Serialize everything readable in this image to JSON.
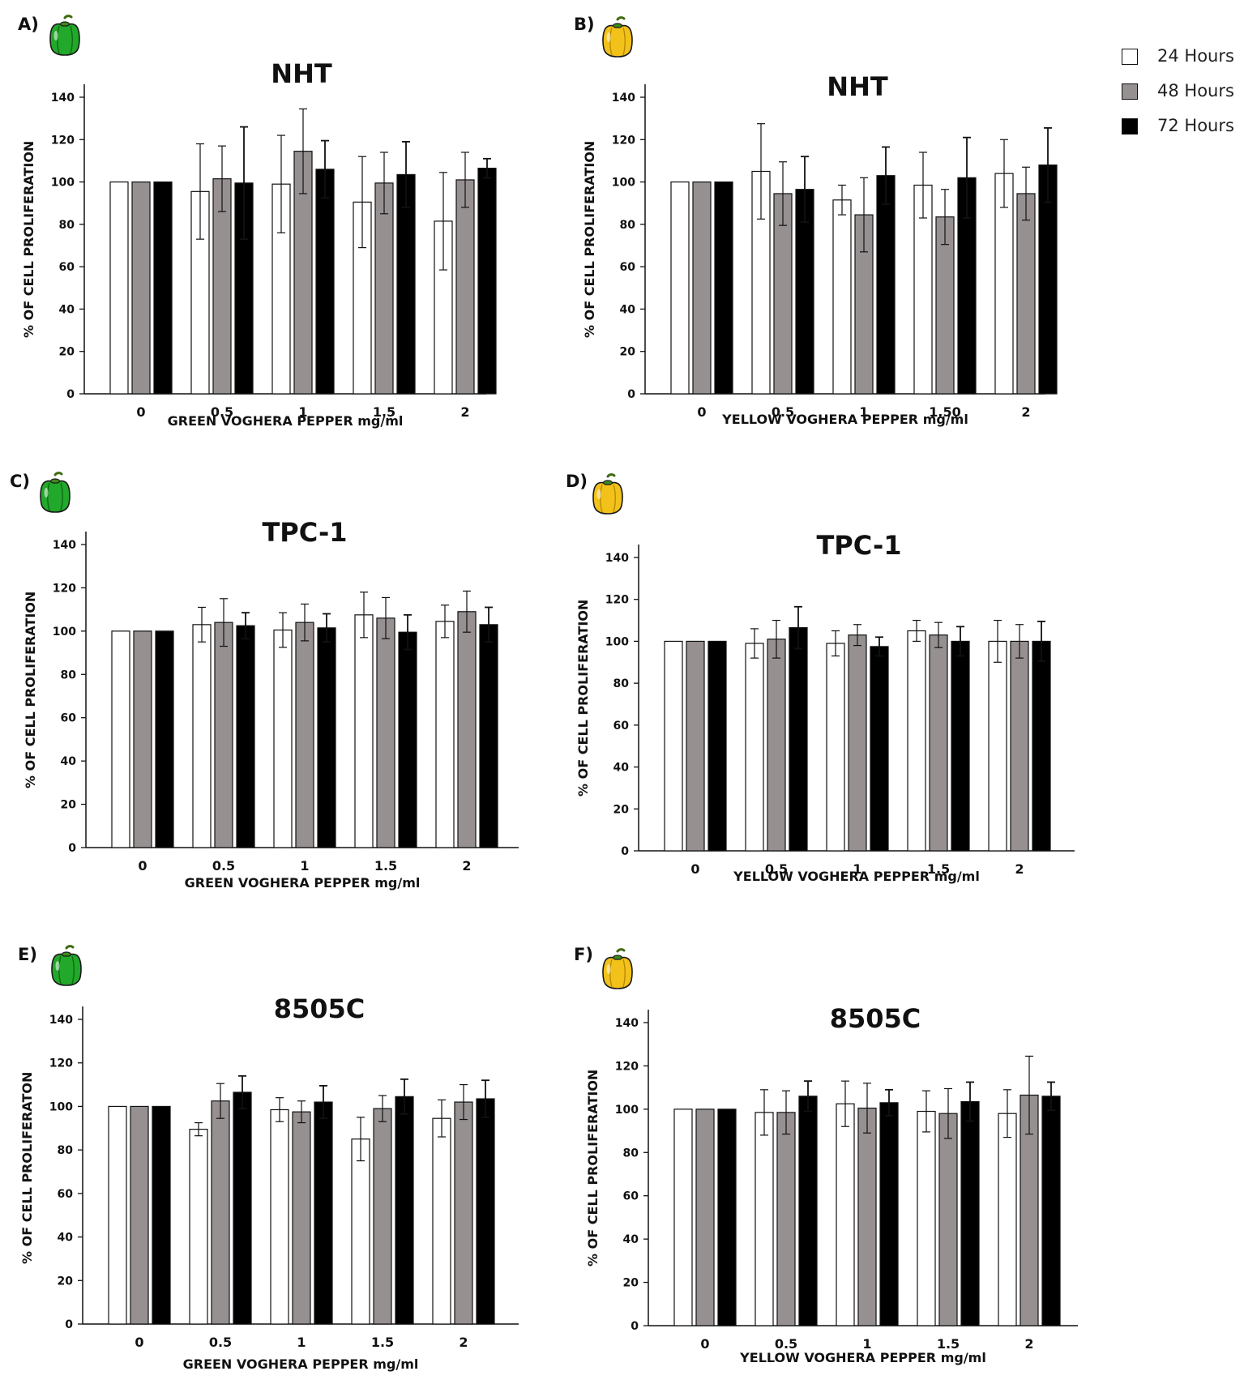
{
  "legend": {
    "items": [
      {
        "label": "24 Hours",
        "color": "#ffffff"
      },
      {
        "label": "48 Hours",
        "color": "#969090"
      },
      {
        "label": "72 Hours",
        "color": "#000000"
      }
    ]
  },
  "panels": [
    {
      "id": "A",
      "panel_label": "A)",
      "pepper_icon": "green-pepper-icon",
      "pepper_color": "#22a82a"
    },
    {
      "id": "B",
      "panel_label": "B)",
      "pepper_icon": "yellow-pepper-icon",
      "pepper_color": "#f2c21b"
    },
    {
      "id": "C",
      "panel_label": "C)",
      "pepper_icon": "green-pepper-icon",
      "pepper_color": "#22a82a"
    },
    {
      "id": "D",
      "panel_label": "D)",
      "pepper_icon": "yellow-pepper-icon",
      "pepper_color": "#f2c21b"
    },
    {
      "id": "E",
      "panel_label": "E)",
      "pepper_icon": "green-pepper-icon",
      "pepper_color": "#22a82a"
    },
    {
      "id": "F",
      "panel_label": "F)",
      "pepper_icon": "yellow-pepper-icon",
      "pepper_color": "#f2c21b"
    }
  ],
  "chart_data": [
    {
      "type": "bar",
      "title": "NHT",
      "xlabel": "GREEN VOGHERA PEPPER mg/ml",
      "ylabel": "% OF CELL PROLIFERATION",
      "categories": [
        "0",
        "0.5",
        "1",
        "1.5",
        "2"
      ],
      "ylim": [
        0,
        140
      ],
      "yticks": [
        0,
        20,
        40,
        60,
        80,
        100,
        120,
        140
      ],
      "series": [
        {
          "name": "24 Hours",
          "values": [
            100,
            95.5,
            99,
            90.5,
            81.5
          ],
          "errors": [
            0,
            22.5,
            23,
            21.5,
            23
          ]
        },
        {
          "name": "48 Hours",
          "values": [
            100,
            101.5,
            114.5,
            99.5,
            101
          ],
          "errors": [
            0,
            15.5,
            20,
            14.5,
            13
          ]
        },
        {
          "name": "72 Hours",
          "values": [
            100,
            99.5,
            106,
            103.5,
            106.5
          ],
          "errors": [
            0,
            26.5,
            13.5,
            15.5,
            4.5
          ]
        }
      ]
    },
    {
      "type": "bar",
      "title": "NHT",
      "xlabel": "YELLOW VOGHERA PEPPER mg/ml",
      "ylabel": "% OF CELL PROLIFERATION",
      "categories": [
        "0",
        "0.5",
        "1",
        "1.50",
        "2"
      ],
      "ylim": [
        0,
        140
      ],
      "yticks": [
        0,
        20,
        40,
        60,
        80,
        100,
        120,
        140
      ],
      "series": [
        {
          "name": "24 Hours",
          "values": [
            100,
            105,
            91.5,
            98.5,
            104
          ],
          "errors": [
            0,
            22.5,
            7,
            15.5,
            16
          ]
        },
        {
          "name": "48 Hours",
          "values": [
            100,
            94.5,
            84.5,
            83.5,
            94.5
          ],
          "errors": [
            0,
            15,
            17.5,
            13,
            12.5
          ]
        },
        {
          "name": "72 Hours",
          "values": [
            100,
            96.5,
            103,
            102,
            108
          ],
          "errors": [
            0,
            15.5,
            13.5,
            19,
            17.5
          ]
        }
      ]
    },
    {
      "type": "bar",
      "title": "TPC-1",
      "xlabel": "GREEN VOGHERA PEPPER mg/ml",
      "ylabel": "% OF CELL PROLIFERATION",
      "categories": [
        "0",
        "0.5",
        "1",
        "1.5",
        "2"
      ],
      "ylim": [
        0,
        140
      ],
      "yticks": [
        0,
        20,
        40,
        60,
        80,
        100,
        120,
        140
      ],
      "series": [
        {
          "name": "24 Hours",
          "values": [
            100,
            103,
            100.5,
            107.5,
            104.5
          ],
          "errors": [
            0,
            8,
            8,
            10.5,
            7.5
          ]
        },
        {
          "name": "48 Hours",
          "values": [
            100,
            104,
            104,
            106,
            109
          ],
          "errors": [
            0,
            11,
            8.5,
            9.5,
            9.5
          ]
        },
        {
          "name": "72 Hours",
          "values": [
            100,
            102.5,
            101.5,
            99.5,
            103
          ],
          "errors": [
            0,
            6,
            6.5,
            8,
            8
          ]
        }
      ]
    },
    {
      "type": "bar",
      "title": "TPC-1",
      "xlabel": "YELLOW VOGHERA PEPPER mg/ml",
      "ylabel": "% OF CELL PROLIFERATION",
      "categories": [
        "0",
        "0.5",
        "1",
        "1.5",
        "2"
      ],
      "ylim": [
        0,
        140
      ],
      "yticks": [
        0,
        20,
        40,
        60,
        80,
        100,
        120,
        140
      ],
      "series": [
        {
          "name": "24 Hours",
          "values": [
            100,
            99,
            99,
            105,
            100
          ],
          "errors": [
            0,
            7,
            6,
            5,
            10
          ]
        },
        {
          "name": "48 Hours",
          "values": [
            100,
            101,
            103,
            103,
            100
          ],
          "errors": [
            0,
            9,
            5,
            6,
            8
          ]
        },
        {
          "name": "72 Hours",
          "values": [
            100,
            106.5,
            97.5,
            100,
            100
          ],
          "errors": [
            0,
            10,
            4.5,
            7,
            9.5
          ]
        }
      ]
    },
    {
      "type": "bar",
      "title": "8505C",
      "xlabel": "GREEN VOGHERA PEPPER mg/ml",
      "ylabel": "% OF CELL PROLIFERATON",
      "categories": [
        "0",
        "0.5",
        "1",
        "1.5",
        "2"
      ],
      "ylim": [
        0,
        140
      ],
      "yticks": [
        0,
        20,
        40,
        60,
        80,
        100,
        120,
        140
      ],
      "series": [
        {
          "name": "24 Hours",
          "values": [
            100,
            89.5,
            98.5,
            85,
            94.5
          ],
          "errors": [
            0,
            3,
            5.5,
            10,
            8.5
          ]
        },
        {
          "name": "48 Hours",
          "values": [
            100,
            102.5,
            97.5,
            99,
            102
          ],
          "errors": [
            0,
            8,
            5,
            6,
            8
          ]
        },
        {
          "name": "72 Hours",
          "values": [
            100,
            106.5,
            102,
            104.5,
            103.5
          ],
          "errors": [
            0,
            7.5,
            7.5,
            8,
            8.5
          ]
        }
      ]
    },
    {
      "type": "bar",
      "title": "8505C",
      "xlabel": "YELLOW VOGHERA PEPPER mg/ml",
      "ylabel": "% OF CELL PROLIFERATION",
      "categories": [
        "0",
        "0.5",
        "1",
        "1.5",
        "2"
      ],
      "ylim": [
        0,
        140
      ],
      "yticks": [
        0,
        20,
        40,
        60,
        80,
        100,
        120,
        140
      ],
      "series": [
        {
          "name": "24 Hours",
          "values": [
            100,
            98.5,
            102.5,
            99,
            98
          ],
          "errors": [
            0,
            10.5,
            10.5,
            9.5,
            11
          ]
        },
        {
          "name": "48 Hours",
          "values": [
            100,
            98.5,
            100.5,
            98,
            106.5
          ],
          "errors": [
            0,
            10,
            11.5,
            11.5,
            18
          ]
        },
        {
          "name": "72 Hours",
          "values": [
            100,
            106,
            103,
            103.5,
            106
          ],
          "errors": [
            0,
            7,
            6,
            9,
            6.5
          ]
        }
      ]
    }
  ]
}
